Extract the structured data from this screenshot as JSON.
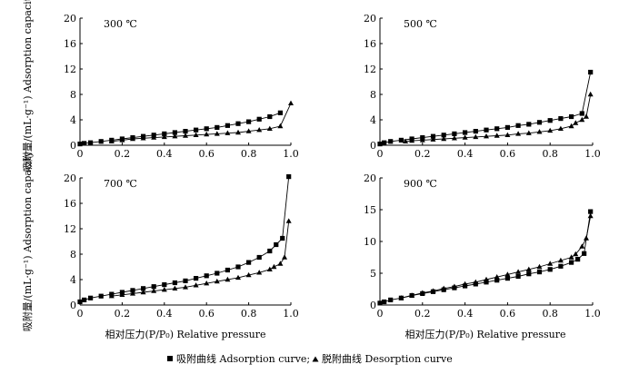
{
  "chart_data": {
    "type": "line",
    "xlabel": "相对压力(P/P₀)  Relative pressure",
    "ylabel": "吸附量/(mL·g⁻¹)  Adsorption capacity",
    "legend": {
      "position": "bottom-center",
      "adsorption_label": "吸附曲线 Adsorption curve;",
      "desorption_label": "脱附曲线 Desorption curve"
    },
    "panels": [
      {
        "title": "300 ℃",
        "xlim": [
          0,
          1.0
        ],
        "ylim": [
          0,
          20
        ],
        "xticks": [
          "0",
          "0.2",
          "0.4",
          "0.6",
          "0.8",
          "1.0"
        ],
        "yticks": [
          "0",
          "4",
          "8",
          "12",
          "16",
          "20"
        ],
        "series": [
          {
            "name": "吸附曲线 Adsorption curve",
            "marker": "square",
            "x": [
              0.0,
              0.02,
              0.05,
              0.1,
              0.15,
              0.2,
              0.25,
              0.3,
              0.35,
              0.4,
              0.45,
              0.5,
              0.55,
              0.6,
              0.65,
              0.7,
              0.75,
              0.8,
              0.85,
              0.9,
              0.95
            ],
            "y": [
              0.2,
              0.3,
              0.4,
              0.6,
              0.8,
              1.0,
              1.2,
              1.4,
              1.6,
              1.8,
              2.0,
              2.2,
              2.4,
              2.6,
              2.8,
              3.1,
              3.4,
              3.7,
              4.1,
              4.5,
              5.1
            ]
          },
          {
            "name": "脱附曲线 Desorption curve",
            "marker": "triangle",
            "x": [
              1.0,
              0.95,
              0.9,
              0.85,
              0.8,
              0.75,
              0.7,
              0.65,
              0.6,
              0.55,
              0.5,
              0.45,
              0.4,
              0.35,
              0.3,
              0.25,
              0.2,
              0.15
            ],
            "y": [
              6.6,
              3.0,
              2.6,
              2.4,
              2.2,
              2.0,
              1.9,
              1.8,
              1.7,
              1.6,
              1.5,
              1.4,
              1.3,
              1.2,
              1.1,
              1.0,
              0.8,
              0.6
            ]
          }
        ]
      },
      {
        "title": "500 ℃",
        "xlim": [
          0,
          1.0
        ],
        "ylim": [
          0,
          20
        ],
        "xticks": [
          "0",
          "0.2",
          "0.4",
          "0.6",
          "0.8",
          "1.0"
        ],
        "yticks": [
          "0",
          "4",
          "8",
          "12",
          "16",
          "20"
        ],
        "series": [
          {
            "name": "吸附曲线 Adsorption curve",
            "marker": "square",
            "x": [
              0.0,
              0.02,
              0.05,
              0.1,
              0.15,
              0.2,
              0.25,
              0.3,
              0.35,
              0.4,
              0.45,
              0.5,
              0.55,
              0.6,
              0.65,
              0.7,
              0.75,
              0.8,
              0.85,
              0.9,
              0.95,
              0.99
            ],
            "y": [
              0.2,
              0.4,
              0.6,
              0.8,
              1.0,
              1.2,
              1.4,
              1.6,
              1.8,
              2.0,
              2.2,
              2.4,
              2.6,
              2.8,
              3.1,
              3.3,
              3.6,
              3.9,
              4.2,
              4.5,
              5.0,
              11.5
            ]
          },
          {
            "name": "脱附曲线 Desorption curve",
            "marker": "triangle",
            "x": [
              0.99,
              0.97,
              0.95,
              0.92,
              0.9,
              0.85,
              0.8,
              0.75,
              0.7,
              0.65,
              0.6,
              0.55,
              0.5,
              0.45,
              0.4,
              0.35,
              0.3,
              0.25,
              0.2,
              0.15,
              0.12
            ],
            "y": [
              8.0,
              4.5,
              4.0,
              3.5,
              3.0,
              2.6,
              2.3,
              2.1,
              1.9,
              1.8,
              1.6,
              1.5,
              1.4,
              1.3,
              1.2,
              1.1,
              1.0,
              0.9,
              0.8,
              0.7,
              0.6
            ]
          }
        ]
      },
      {
        "title": "700 ℃",
        "xlim": [
          0,
          1.0
        ],
        "ylim": [
          0,
          20
        ],
        "xticks": [
          "0",
          "0.2",
          "0.4",
          "0.6",
          "0.8",
          "1.0"
        ],
        "yticks": [
          "0",
          "4",
          "8",
          "12",
          "16",
          "20"
        ],
        "series": [
          {
            "name": "吸附曲线 Adsorption curve",
            "marker": "square",
            "x": [
              0.0,
              0.02,
              0.05,
              0.1,
              0.15,
              0.2,
              0.25,
              0.3,
              0.35,
              0.4,
              0.45,
              0.5,
              0.55,
              0.6,
              0.65,
              0.7,
              0.75,
              0.8,
              0.85,
              0.9,
              0.93,
              0.96,
              0.99
            ],
            "y": [
              0.5,
              0.8,
              1.1,
              1.4,
              1.7,
              2.0,
              2.3,
              2.6,
              2.9,
              3.2,
              3.5,
              3.8,
              4.2,
              4.6,
              5.0,
              5.5,
              6.0,
              6.7,
              7.5,
              8.5,
              9.5,
              10.5,
              20.2
            ]
          },
          {
            "name": "脱附曲线 Desorption curve",
            "marker": "triangle",
            "x": [
              0.99,
              0.97,
              0.95,
              0.92,
              0.9,
              0.85,
              0.8,
              0.75,
              0.7,
              0.65,
              0.6,
              0.55,
              0.5,
              0.45,
              0.4,
              0.35,
              0.3,
              0.25,
              0.2,
              0.15
            ],
            "y": [
              13.2,
              7.5,
              6.5,
              6.0,
              5.6,
              5.1,
              4.7,
              4.3,
              4.0,
              3.7,
              3.4,
              3.1,
              2.8,
              2.6,
              2.4,
              2.2,
              2.0,
              1.8,
              1.6,
              1.4
            ]
          }
        ]
      },
      {
        "title": "900 ℃",
        "xlim": [
          0,
          1.0
        ],
        "ylim": [
          0,
          20
        ],
        "xticks": [
          "0",
          "0.2",
          "0.4",
          "0.6",
          "0.8",
          "1.0"
        ],
        "yticks": [
          "0",
          "5",
          "10",
          "15",
          "20"
        ],
        "series": [
          {
            "name": "吸附曲线 Adsorption curve",
            "marker": "square",
            "x": [
              0.0,
              0.02,
              0.05,
              0.1,
              0.15,
              0.2,
              0.25,
              0.3,
              0.35,
              0.4,
              0.45,
              0.5,
              0.55,
              0.6,
              0.65,
              0.7,
              0.75,
              0.8,
              0.85,
              0.9,
              0.93,
              0.96,
              0.99
            ],
            "y": [
              0.3,
              0.5,
              0.8,
              1.1,
              1.5,
              1.8,
              2.1,
              2.4,
              2.7,
              3.0,
              3.3,
              3.6,
              3.9,
              4.2,
              4.5,
              4.9,
              5.2,
              5.6,
              6.1,
              6.7,
              7.2,
              8.1,
              14.7
            ]
          },
          {
            "name": "脱附曲线 Desorption curve",
            "marker": "triangle",
            "x": [
              0.99,
              0.97,
              0.95,
              0.92,
              0.9,
              0.85,
              0.8,
              0.75,
              0.7,
              0.65,
              0.6,
              0.55,
              0.5,
              0.45,
              0.4,
              0.35,
              0.3,
              0.25,
              0.2,
              0.15,
              0.1
            ],
            "y": [
              14.0,
              10.5,
              9.2,
              8.0,
              7.5,
              7.0,
              6.5,
              6.0,
              5.6,
              5.2,
              4.8,
              4.4,
              4.0,
              3.6,
              3.3,
              2.9,
              2.6,
              2.2,
              1.9,
              1.5,
              1.1
            ]
          }
        ]
      }
    ]
  }
}
